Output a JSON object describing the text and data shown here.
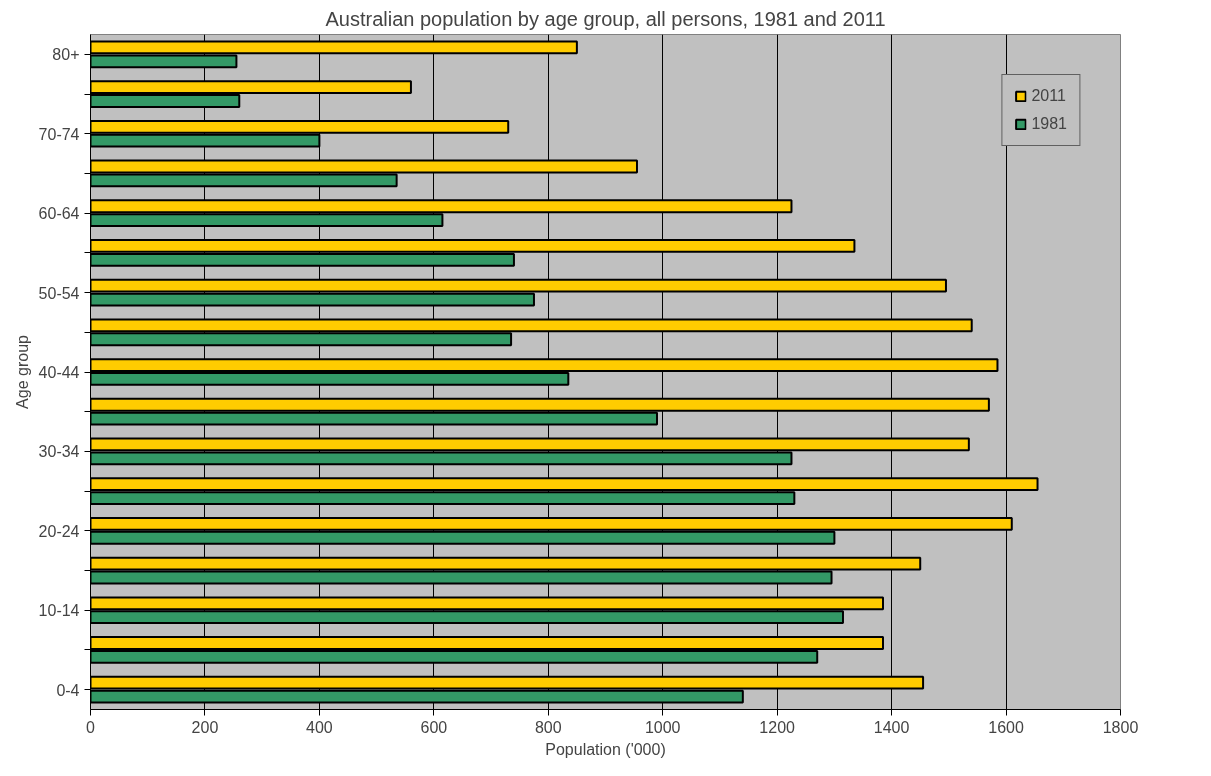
{
  "chart_data": {
    "type": "bar",
    "orientation": "horizontal",
    "title": "Australian population by age group, all persons, 1981 and 2011",
    "xlabel": "Population ('000)",
    "ylabel": "Age group",
    "categories": [
      "80+",
      null,
      "70-74",
      null,
      "60-64",
      null,
      "50-54",
      null,
      "40-44",
      null,
      "30-34",
      null,
      "20-24",
      null,
      "10-14",
      null,
      "0-4"
    ],
    "series": [
      {
        "name": "2011",
        "color": "#ffcc00",
        "values": [
          850,
          560,
          730,
          955,
          1225,
          1335,
          1495,
          1540,
          1585,
          1570,
          1535,
          1655,
          1610,
          1450,
          1385,
          1385,
          1455
        ]
      },
      {
        "name": "1981",
        "color": "#339966",
        "values": [
          255,
          260,
          400,
          535,
          615,
          740,
          775,
          735,
          835,
          990,
          1225,
          1230,
          1300,
          1295,
          1315,
          1270,
          1140
        ]
      }
    ],
    "xlim": [
      0,
      1800
    ],
    "xticks": [
      0,
      200,
      400,
      600,
      800,
      1000,
      1200,
      1400,
      1600,
      1800
    ],
    "grid": "x",
    "legend": "top right"
  }
}
